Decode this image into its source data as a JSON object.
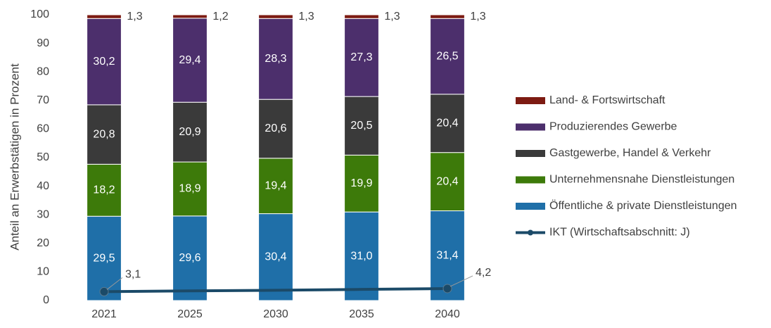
{
  "chart_data": {
    "type": "bar",
    "stacked": true,
    "y_label": "Anteil an Erwerbstätigen in Prozent",
    "categories": [
      "2021",
      "2025",
      "2030",
      "2035",
      "2040"
    ],
    "ylim": [
      0,
      100
    ],
    "yticks": [
      0,
      10,
      20,
      30,
      40,
      50,
      60,
      70,
      80,
      90,
      100
    ],
    "grid": false,
    "legend": "right",
    "series": [
      {
        "name": "Öffentliche & private Dienstleistungen",
        "color": "#1f6fa8",
        "values": [
          29.5,
          29.6,
          30.4,
          31.0,
          31.4
        ],
        "value_labels": [
          "29,5",
          "29,6",
          "30,4",
          "31,0",
          "31,4"
        ]
      },
      {
        "name": "Unternehmensnahe Dienstleistungen",
        "color": "#3d7a0a",
        "values": [
          18.2,
          18.9,
          19.4,
          19.9,
          20.4
        ],
        "value_labels": [
          "18,2",
          "18,9",
          "19,4",
          "19,9",
          "20,4"
        ]
      },
      {
        "name": "Gastgewerbe, Handel & Verkehr",
        "color": "#3a3a3a",
        "values": [
          20.8,
          20.9,
          20.6,
          20.5,
          20.4
        ],
        "value_labels": [
          "20,8",
          "20,9",
          "20,6",
          "20,5",
          "20,4"
        ]
      },
      {
        "name": "Produzierendes Gewerbe",
        "color": "#4c2f6c",
        "values": [
          30.2,
          29.4,
          28.3,
          27.3,
          26.5
        ],
        "value_labels": [
          "30,2",
          "29,4",
          "28,3",
          "27,3",
          "26,5"
        ]
      },
      {
        "name": "Land- & Fortswirtschaft",
        "color": "#7d1b12",
        "values": [
          1.3,
          1.2,
          1.3,
          1.3,
          1.3
        ],
        "value_labels": [
          "1,3",
          "1,2",
          "1,3",
          "1,3",
          "1,3"
        ]
      },
      {
        "name": "IKT (Wirtschaftsabschnitt: J)",
        "type": "line",
        "color": "#1b4a68",
        "values": [
          3.1,
          3.4,
          3.6,
          3.9,
          4.2
        ],
        "value_labels": [
          "3,1",
          null,
          null,
          null,
          "4,2"
        ]
      }
    ]
  }
}
